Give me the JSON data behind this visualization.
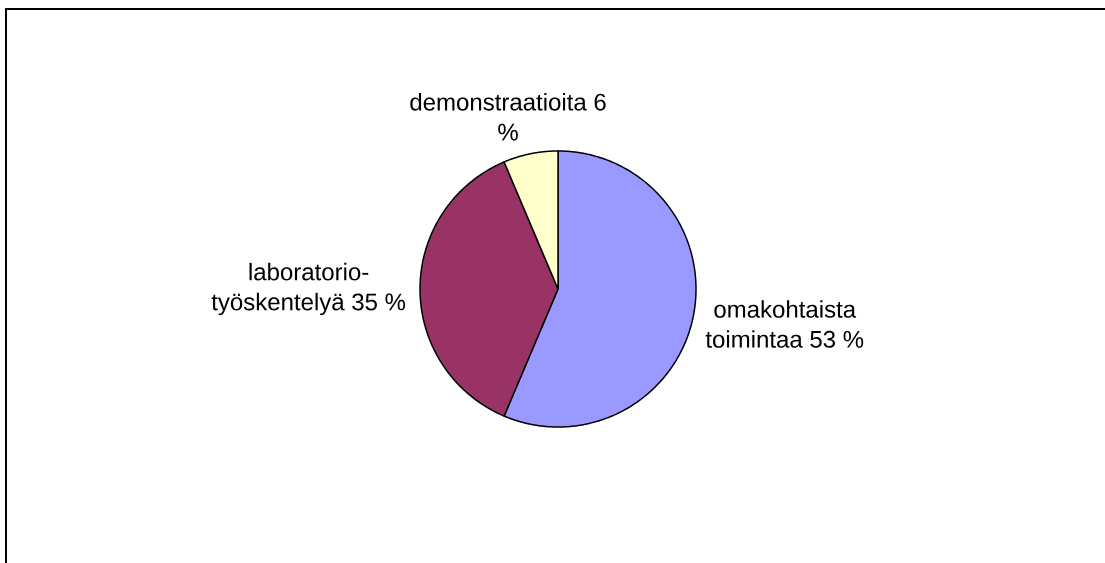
{
  "chart_data": {
    "type": "pie",
    "categories": [
      "omakohtaista toimintaa 53 %",
      "laboratorio-työskentelyä 35 %",
      "demonstraatioita 6 %"
    ],
    "values": [
      53,
      35,
      6
    ],
    "colors": [
      "#9999ff",
      "#993366",
      "#ffffcc"
    ]
  }
}
